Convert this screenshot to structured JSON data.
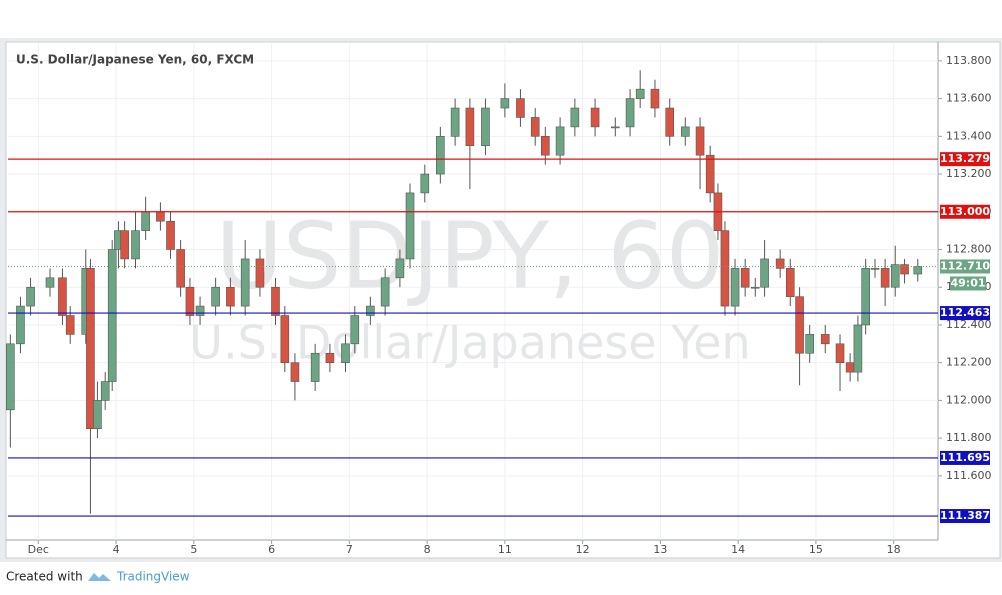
{
  "chart_data": {
    "type": "candlestick",
    "title": "U.S. Dollar/Japanese Yen, 60, FXCM",
    "watermark": [
      "USDJPY, 60",
      "U.S. Dollar/Japanese Yen"
    ],
    "up_color": "#6ba583",
    "down_color": "#d75442",
    "x": [
      -0.36,
      -0.23,
      -0.1,
      0.15,
      0.31,
      0.41,
      0.61,
      0.67,
      0.76,
      0.86,
      0.95,
      1.03,
      1.11,
      1.25,
      1.38,
      1.57,
      1.7,
      1.83,
      1.95,
      2.08,
      2.28,
      2.47,
      2.66,
      2.85,
      3.05,
      3.17,
      3.3,
      3.56,
      3.75,
      3.95,
      4.07,
      4.27,
      4.46,
      4.65,
      4.78,
      4.97,
      5.17,
      5.36,
      5.55,
      5.75,
      6.0,
      6.2,
      6.39,
      6.52,
      6.71,
      6.9,
      7.16,
      7.42,
      7.61,
      7.74,
      7.93,
      8.12,
      8.32,
      8.51,
      8.64,
      8.74,
      8.83,
      8.96,
      9.09,
      9.22,
      9.34,
      9.54,
      9.67,
      9.79,
      9.92,
      10.12,
      10.31,
      10.44,
      10.54,
      10.64,
      10.76,
      10.89,
      11.02,
      11.14,
      11.31
    ],
    "open": [
      111.95,
      112.3,
      112.5,
      112.6,
      112.65,
      112.45,
      112.35,
      112.7,
      111.85,
      112.0,
      112.1,
      112.8,
      112.9,
      112.75,
      112.9,
      113.0,
      112.95,
      112.8,
      112.6,
      112.45,
      112.5,
      112.6,
      112.5,
      112.75,
      112.6,
      112.45,
      112.2,
      112.1,
      112.25,
      112.2,
      112.3,
      112.45,
      112.5,
      112.65,
      112.75,
      113.1,
      113.2,
      113.4,
      113.55,
      113.35,
      113.55,
      113.6,
      113.5,
      113.4,
      113.3,
      113.45,
      113.55,
      113.45,
      113.45,
      113.6,
      113.65,
      113.55,
      113.4,
      113.45,
      113.3,
      113.1,
      112.9,
      112.5,
      112.7,
      112.6,
      112.6,
      112.75,
      112.7,
      112.55,
      112.25,
      112.35,
      112.3,
      112.2,
      112.15,
      112.4,
      112.7,
      112.7,
      112.6,
      112.72,
      112.67
    ],
    "high": [
      112.35,
      112.55,
      112.65,
      112.7,
      112.7,
      112.5,
      112.8,
      112.75,
      112.1,
      112.15,
      112.85,
      112.95,
      112.95,
      113.0,
      113.08,
      113.05,
      113.0,
      112.85,
      112.65,
      112.55,
      112.65,
      112.65,
      112.85,
      112.8,
      112.65,
      112.5,
      112.25,
      112.3,
      112.3,
      112.35,
      112.5,
      112.55,
      112.7,
      112.8,
      113.15,
      113.25,
      113.45,
      113.6,
      113.6,
      113.6,
      113.68,
      113.65,
      113.55,
      113.45,
      113.5,
      113.6,
      113.6,
      113.5,
      113.65,
      113.75,
      113.7,
      113.6,
      113.5,
      113.5,
      113.35,
      113.15,
      112.95,
      112.75,
      112.75,
      112.65,
      112.85,
      112.8,
      112.75,
      112.6,
      112.4,
      112.4,
      112.35,
      112.25,
      112.45,
      112.75,
      112.75,
      112.75,
      112.82,
      112.75,
      112.75
    ],
    "low": [
      111.75,
      112.25,
      112.45,
      112.55,
      112.4,
      112.3,
      112.3,
      111.4,
      111.8,
      111.95,
      112.05,
      112.7,
      112.7,
      112.7,
      112.85,
      112.9,
      112.75,
      112.55,
      112.4,
      112.4,
      112.45,
      112.45,
      112.45,
      112.55,
      112.4,
      112.15,
      112.0,
      112.05,
      112.15,
      112.15,
      112.25,
      112.4,
      112.45,
      112.6,
      112.7,
      113.05,
      113.15,
      113.35,
      113.12,
      113.3,
      113.5,
      113.45,
      113.35,
      113.25,
      113.25,
      113.4,
      113.4,
      113.4,
      113.4,
      113.55,
      113.5,
      113.35,
      113.35,
      113.12,
      113.05,
      112.85,
      112.45,
      112.45,
      112.55,
      112.55,
      112.55,
      112.65,
      112.5,
      112.08,
      112.2,
      112.25,
      112.05,
      112.1,
      112.1,
      112.35,
      112.65,
      112.5,
      112.55,
      112.62,
      112.63
    ],
    "close": [
      112.3,
      112.5,
      112.6,
      112.65,
      112.45,
      112.35,
      112.7,
      111.85,
      112.0,
      112.1,
      112.8,
      112.9,
      112.75,
      112.9,
      113.0,
      112.95,
      112.8,
      112.6,
      112.45,
      112.5,
      112.6,
      112.5,
      112.75,
      112.6,
      112.45,
      112.2,
      112.1,
      112.25,
      112.2,
      112.3,
      112.45,
      112.5,
      112.65,
      112.75,
      113.1,
      113.2,
      113.4,
      113.55,
      113.35,
      113.55,
      113.6,
      113.5,
      113.4,
      113.3,
      113.45,
      113.55,
      113.45,
      113.45,
      113.6,
      113.65,
      113.55,
      113.4,
      113.45,
      113.3,
      113.1,
      112.9,
      112.5,
      112.7,
      112.6,
      112.6,
      112.75,
      112.7,
      112.55,
      112.25,
      112.35,
      112.3,
      112.2,
      112.15,
      112.4,
      112.7,
      112.7,
      112.6,
      112.72,
      112.67,
      112.71
    ],
    "xlim": [
      -0.39,
      11.57
    ],
    "ylim": [
      111.26,
      113.9
    ],
    "xticks": [
      {
        "value": 0,
        "label": "Dec"
      },
      {
        "value": 1,
        "label": "4"
      },
      {
        "value": 2,
        "label": "5"
      },
      {
        "value": 3,
        "label": "6"
      },
      {
        "value": 4,
        "label": "7"
      },
      {
        "value": 5,
        "label": "8"
      },
      {
        "value": 6,
        "label": "11"
      },
      {
        "value": 7,
        "label": "12"
      },
      {
        "value": 8,
        "label": "13"
      },
      {
        "value": 9,
        "label": "14"
      },
      {
        "value": 10,
        "label": "15"
      },
      {
        "value": 11,
        "label": "18"
      }
    ],
    "yticks": [
      {
        "value": 111.6,
        "label": "111.600"
      },
      {
        "value": 111.8,
        "label": "111.800"
      },
      {
        "value": 112.0,
        "label": "112.000"
      },
      {
        "value": 112.2,
        "label": "112.200"
      },
      {
        "value": 112.4,
        "label": "112.400"
      },
      {
        "value": 112.6,
        "label": "112.600"
      },
      {
        "value": 112.8,
        "label": "112.800"
      },
      {
        "value": 113.0,
        "label": "113.000"
      },
      {
        "value": 113.2,
        "label": "113.200"
      },
      {
        "value": 113.4,
        "label": "113.400"
      },
      {
        "value": 113.6,
        "label": "113.600"
      },
      {
        "value": 113.8,
        "label": "113.800"
      }
    ],
    "grid": true,
    "levels": [
      {
        "value": 113.279,
        "label": "113.279",
        "color": "#e01010"
      },
      {
        "value": 113.0,
        "label": "113.000",
        "color": "#e01010"
      },
      {
        "value": 112.463,
        "label": "112.463",
        "color": "#1010c0"
      },
      {
        "value": 111.695,
        "label": "111.695",
        "color": "#1010c0"
      },
      {
        "value": 111.387,
        "label": "111.387",
        "color": "#1010c0"
      }
    ],
    "last_price": {
      "value": 112.71,
      "label": "112.710",
      "countdown": "49:01",
      "color": "#6ba583"
    }
  },
  "footer": {
    "text": "Created with",
    "brand": "TradingView"
  }
}
